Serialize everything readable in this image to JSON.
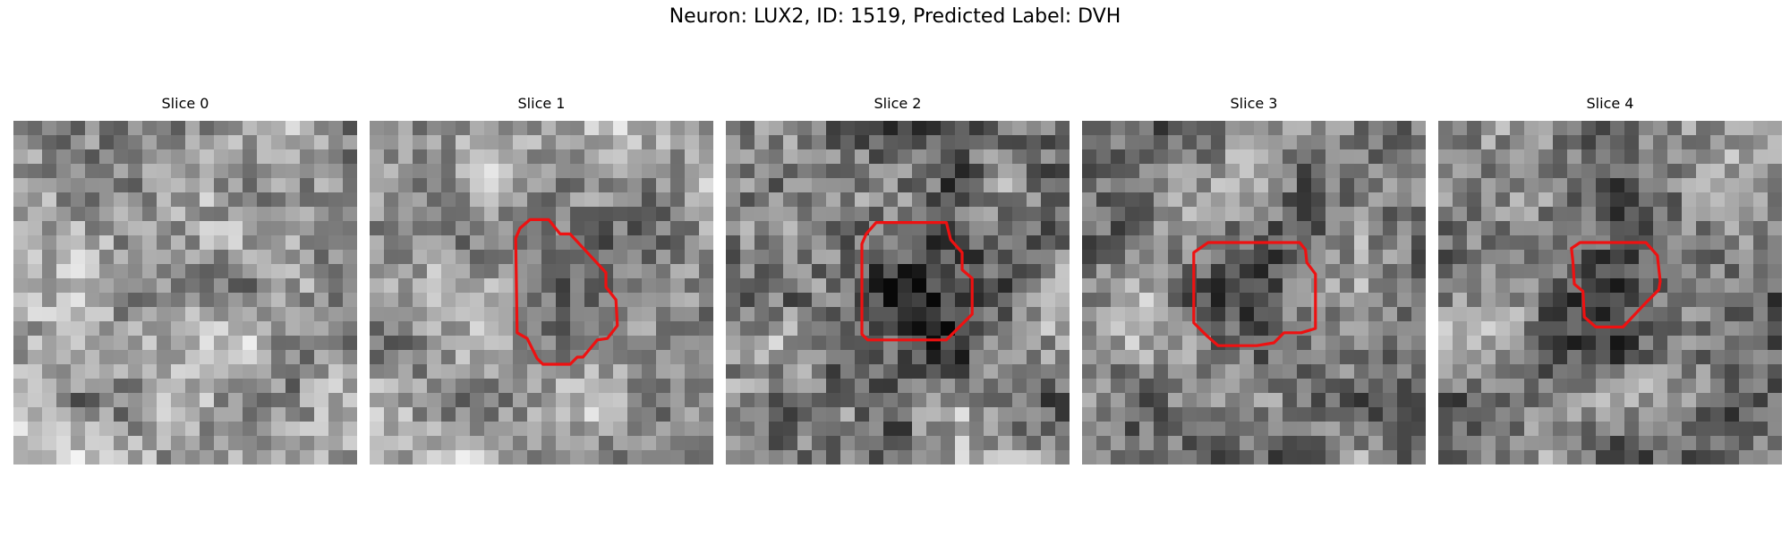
{
  "title": "Neuron: LUX2, ID: 1519, Predicted Label: DVH",
  "slices": [
    {
      "label": "Slice 0",
      "seed": 11,
      "mean": 0.62,
      "spread": 0.2,
      "dark_center": 0.0,
      "has_contour": false,
      "contour": []
    },
    {
      "label": "Slice 1",
      "seed": 23,
      "mean": 0.62,
      "spread": 0.18,
      "dark_center": 0.25,
      "has_contour": true,
      "contour": [
        [
          10.5,
          7.5
        ],
        [
          11.2,
          6.9
        ],
        [
          12.5,
          6.9
        ],
        [
          13.3,
          7.9
        ],
        [
          14.0,
          7.9
        ],
        [
          16.5,
          10.6
        ],
        [
          16.5,
          11.6
        ],
        [
          17.2,
          12.5
        ],
        [
          17.3,
          14.3
        ],
        [
          16.6,
          15.2
        ],
        [
          15.9,
          15.3
        ],
        [
          14.9,
          16.5
        ],
        [
          14.5,
          16.5
        ],
        [
          14.0,
          17.0
        ],
        [
          12.1,
          17.0
        ],
        [
          11.7,
          16.6
        ],
        [
          11.0,
          15.2
        ],
        [
          10.3,
          14.8
        ],
        [
          10.2,
          8.2
        ]
      ]
    },
    {
      "label": "Slice 2",
      "seed": 37,
      "mean": 0.52,
      "spread": 0.22,
      "dark_center": 0.4,
      "has_contour": true,
      "contour": [
        [
          9.8,
          7.9
        ],
        [
          10.5,
          7.1
        ],
        [
          15.4,
          7.1
        ],
        [
          15.7,
          8.3
        ],
        [
          16.5,
          9.2
        ],
        [
          16.5,
          10.4
        ],
        [
          17.2,
          11.0
        ],
        [
          17.2,
          13.5
        ],
        [
          16.4,
          14.3
        ],
        [
          15.4,
          15.3
        ],
        [
          9.9,
          15.3
        ],
        [
          9.5,
          14.9
        ],
        [
          9.5,
          8.6
        ]
      ]
    },
    {
      "label": "Slice 3",
      "seed": 53,
      "mean": 0.55,
      "spread": 0.2,
      "dark_center": 0.12,
      "has_contour": true,
      "contour": [
        [
          7.8,
          9.2
        ],
        [
          8.8,
          8.5
        ],
        [
          15.2,
          8.5
        ],
        [
          15.6,
          9.0
        ],
        [
          15.7,
          9.9
        ],
        [
          16.3,
          10.7
        ],
        [
          16.3,
          14.5
        ],
        [
          15.3,
          14.8
        ],
        [
          14.1,
          14.8
        ],
        [
          13.4,
          15.5
        ],
        [
          12.2,
          15.7
        ],
        [
          9.5,
          15.7
        ],
        [
          8.7,
          15.0
        ],
        [
          7.8,
          14.1
        ]
      ]
    },
    {
      "label": "Slice 4",
      "seed": 71,
      "mean": 0.5,
      "spread": 0.2,
      "dark_center": 0.18,
      "has_contour": true,
      "contour": [
        [
          9.3,
          8.9
        ],
        [
          9.9,
          8.5
        ],
        [
          14.5,
          8.5
        ],
        [
          15.3,
          9.4
        ],
        [
          15.5,
          11.2
        ],
        [
          15.4,
          11.8
        ],
        [
          14.5,
          12.7
        ],
        [
          12.9,
          14.4
        ],
        [
          11.0,
          14.4
        ],
        [
          10.2,
          13.7
        ],
        [
          10.1,
          11.9
        ],
        [
          9.5,
          11.4
        ],
        [
          9.4,
          9.8
        ]
      ]
    }
  ],
  "colors": {
    "contour": "#ee1111",
    "background": "#ffffff"
  },
  "grid_size": 24
}
